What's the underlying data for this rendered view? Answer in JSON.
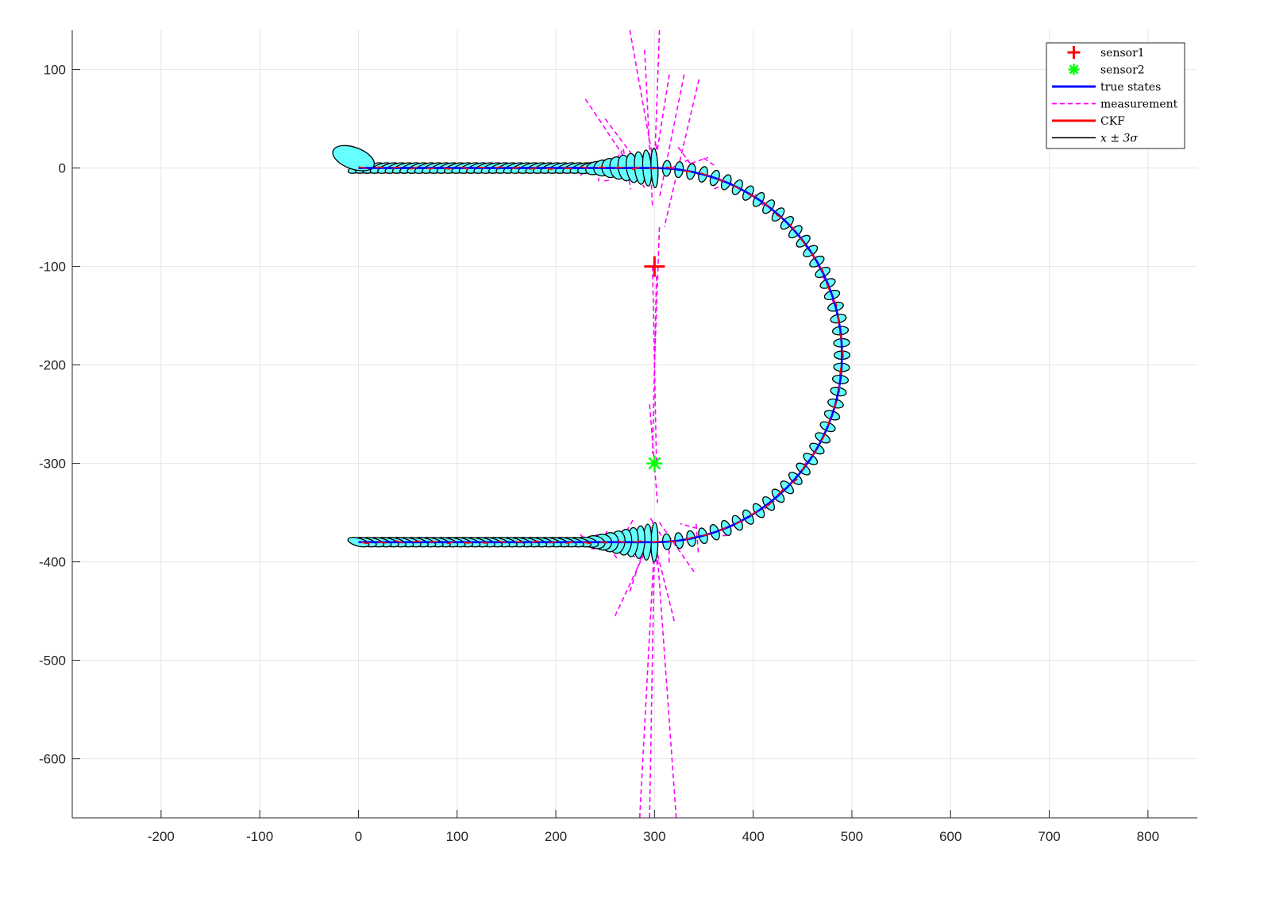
{
  "chart_data": {
    "type": "scatter",
    "title": "",
    "xlabel": "",
    "ylabel": "",
    "xlim": [
      -290,
      850
    ],
    "ylim": [
      -660,
      140
    ],
    "xticks": [
      -200,
      -100,
      0,
      100,
      200,
      300,
      400,
      500,
      600,
      700,
      800
    ],
    "yticks": [
      100,
      0,
      -100,
      -200,
      -300,
      -400,
      -500,
      -600
    ],
    "grid": true,
    "legend_position": "top-right",
    "legend": [
      {
        "label": "sensor1",
        "marker": "plus",
        "color": "#ff0000"
      },
      {
        "label": "sensor2",
        "marker": "asterisk",
        "color": "#00ff00"
      },
      {
        "label": "true states",
        "line": "solid",
        "color": "#0000ff"
      },
      {
        "label": "measurement",
        "line": "dashed",
        "color": "#ff00ff"
      },
      {
        "label": "CKF",
        "line": "solid",
        "color": "#ff0000"
      },
      {
        "label": "x ± 3σ",
        "line": "solid",
        "color": "#000000"
      }
    ],
    "sensors": [
      {
        "name": "sensor1",
        "x": 300,
        "y": -100
      },
      {
        "name": "sensor2",
        "x": 300,
        "y": -300
      }
    ],
    "trajectory_shape": {
      "top_leg": {
        "x_start": 0,
        "x_end": 300,
        "y": 0
      },
      "turn": {
        "center_x": 300,
        "center_y": -190,
        "radius": 190
      },
      "bottom_leg": {
        "x_start": 300,
        "x_end": 0,
        "y": -380
      }
    },
    "colors": {
      "ellipse_fill": "#66ffff",
      "ellipse_edge": "#000000",
      "true_states": "#0000ff",
      "ckf": "#ff0000",
      "measurement": "#ff00ff",
      "grid": "#e6e6e6",
      "axis": "#262626"
    }
  }
}
